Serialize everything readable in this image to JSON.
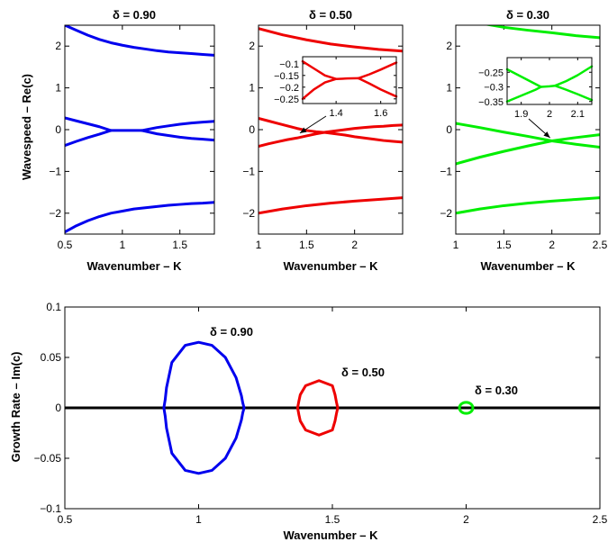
{
  "chart_data": [
    {
      "type": "line",
      "title": "δ = 0.90",
      "xlabel": "Wavenumber – K",
      "ylabel": "Wavespeed – Re(c)",
      "xlim": [
        0.5,
        1.8
      ],
      "ylim": [
        -2.5,
        2.5
      ],
      "xticks": [
        "0.5",
        "1",
        "1.5"
      ],
      "yticks": [
        "−2",
        "−1",
        "0",
        "1",
        "2"
      ],
      "color": "#0000ee",
      "series": [
        {
          "x": [
            0.5,
            0.6,
            0.7,
            0.8,
            0.9,
            1.0,
            1.1,
            1.2,
            1.3,
            1.4,
            1.5,
            1.6,
            1.7,
            1.8
          ],
          "y": [
            2.5,
            2.38,
            2.26,
            2.16,
            2.08,
            2.02,
            1.97,
            1.93,
            1.89,
            1.86,
            1.84,
            1.82,
            1.8,
            1.78
          ]
        },
        {
          "x": [
            0.5,
            0.6,
            0.7,
            0.8,
            0.9
          ],
          "y": [
            0.28,
            0.21,
            0.14,
            0.07,
            -0.02
          ]
        },
        {
          "x": [
            0.5,
            0.6,
            0.7,
            0.8,
            0.9
          ],
          "y": [
            -0.38,
            -0.28,
            -0.19,
            -0.11,
            -0.02
          ]
        },
        {
          "x": [
            0.9,
            1.0,
            1.1,
            1.17
          ],
          "y": [
            -0.02,
            -0.02,
            -0.02,
            -0.02
          ]
        },
        {
          "x": [
            1.17,
            1.3,
            1.4,
            1.5,
            1.6,
            1.7,
            1.8
          ],
          "y": [
            -0.02,
            0.05,
            0.09,
            0.13,
            0.16,
            0.18,
            0.2
          ]
        },
        {
          "x": [
            1.17,
            1.3,
            1.4,
            1.5,
            1.6,
            1.7,
            1.8
          ],
          "y": [
            -0.02,
            -0.1,
            -0.14,
            -0.18,
            -0.21,
            -0.23,
            -0.25
          ]
        },
        {
          "x": [
            0.5,
            0.6,
            0.7,
            0.8,
            0.9,
            1.0,
            1.1,
            1.2,
            1.3,
            1.4,
            1.5,
            1.6,
            1.7,
            1.8
          ],
          "y": [
            -2.45,
            -2.3,
            -2.18,
            -2.08,
            -2.0,
            -1.95,
            -1.9,
            -1.87,
            -1.84,
            -1.81,
            -1.79,
            -1.77,
            -1.76,
            -1.74
          ]
        }
      ]
    },
    {
      "type": "line",
      "title": "δ = 0.50",
      "xlabel": "Wavenumber – K",
      "xlim": [
        1,
        2.5
      ],
      "ylim": [
        -2.5,
        2.5
      ],
      "xticks": [
        "1",
        "1.5",
        "2"
      ],
      "yticks": [
        "−2",
        "−1",
        "0",
        "1",
        "2"
      ],
      "color": "#ee0000",
      "series": [
        {
          "x": [
            1.0,
            1.25,
            1.5,
            1.75,
            2.0,
            2.25,
            2.5
          ],
          "y": [
            2.42,
            2.27,
            2.15,
            2.05,
            1.98,
            1.92,
            1.88
          ]
        },
        {
          "x": [
            1.0,
            1.1,
            1.2,
            1.3,
            1.4,
            1.5,
            1.6,
            1.7,
            1.8,
            1.9,
            2.0,
            2.1,
            2.2,
            2.3,
            2.4,
            2.5
          ],
          "y": [
            0.27,
            0.21,
            0.15,
            0.09,
            0.03,
            -0.02,
            -0.05,
            -0.07,
            -0.1,
            -0.13,
            -0.17,
            -0.2,
            -0.23,
            -0.26,
            -0.28,
            -0.3
          ]
        },
        {
          "x": [
            1.0,
            1.1,
            1.2,
            1.3,
            1.4,
            1.5,
            1.6,
            1.7,
            1.8,
            1.9,
            2.0,
            2.1,
            2.2,
            2.3,
            2.4,
            2.5
          ],
          "y": [
            -0.4,
            -0.34,
            -0.29,
            -0.24,
            -0.2,
            -0.15,
            -0.1,
            -0.06,
            -0.03,
            0.0,
            0.03,
            0.05,
            0.07,
            0.08,
            0.1,
            0.11
          ]
        },
        {
          "x": [
            1.0,
            1.25,
            1.5,
            1.75,
            2.0,
            2.25,
            2.5
          ],
          "y": [
            -2.0,
            -1.9,
            -1.82,
            -1.76,
            -1.71,
            -1.67,
            -1.63
          ]
        }
      ],
      "inset": {
        "xlim": [
          1.25,
          1.67
        ],
        "ylim": [
          -0.27,
          -0.07
        ],
        "xticks": [
          "1.4",
          "1.6"
        ],
        "yticks": [
          "−0.1",
          "−0.15",
          "−0.2",
          "−0.25"
        ],
        "series": [
          {
            "x": [
              1.25,
              1.3,
              1.35,
              1.4
            ],
            "y": [
              -0.09,
              -0.12,
              -0.15,
              -0.165
            ]
          },
          {
            "x": [
              1.25,
              1.3,
              1.35,
              1.4
            ],
            "y": [
              -0.25,
              -0.21,
              -0.18,
              -0.165
            ]
          },
          {
            "x": [
              1.4,
              1.45,
              1.5
            ],
            "y": [
              -0.165,
              -0.163,
              -0.162
            ]
          },
          {
            "x": [
              1.5,
              1.55,
              1.6,
              1.67
            ],
            "y": [
              -0.162,
              -0.145,
              -0.125,
              -0.095
            ]
          },
          {
            "x": [
              1.5,
              1.55,
              1.6,
              1.67
            ],
            "y": [
              -0.162,
              -0.185,
              -0.21,
              -0.24
            ]
          }
        ]
      }
    },
    {
      "type": "line",
      "title": "δ = 0.30",
      "xlabel": "Wavenumber – K",
      "xlim": [
        1,
        2.5
      ],
      "ylim": [
        -2.5,
        2.5
      ],
      "xticks": [
        "1",
        "1.5",
        "2",
        "2.5"
      ],
      "yticks": [
        "−2",
        "−1",
        "0",
        "1",
        "2"
      ],
      "color": "#00ee00",
      "series": [
        {
          "x": [
            1.0,
            1.25,
            1.5,
            1.75,
            2.0,
            2.25,
            2.5
          ],
          "y": [
            2.7,
            2.55,
            2.45,
            2.38,
            2.32,
            2.25,
            2.2
          ]
        },
        {
          "x": [
            1.0,
            1.25,
            1.5,
            1.75,
            2.0,
            2.25,
            2.5
          ],
          "y": [
            0.15,
            0.05,
            -0.06,
            -0.16,
            -0.27,
            -0.35,
            -0.42
          ]
        },
        {
          "x": [
            1.0,
            1.25,
            1.5,
            1.75,
            2.0,
            2.25,
            2.5
          ],
          "y": [
            -0.82,
            -0.66,
            -0.52,
            -0.39,
            -0.27,
            -0.19,
            -0.12
          ]
        },
        {
          "x": [
            1.0,
            1.25,
            1.5,
            1.75,
            2.0,
            2.25,
            2.5
          ],
          "y": [
            -2.0,
            -1.9,
            -1.82,
            -1.76,
            -1.71,
            -1.67,
            -1.63
          ]
        }
      ],
      "inset": {
        "xlim": [
          1.85,
          2.15
        ],
        "ylim": [
          -0.36,
          -0.2
        ],
        "xticks": [
          "1.9",
          "2",
          "2.1"
        ],
        "yticks": [
          "−0.25",
          "−0.3",
          "−0.35"
        ],
        "series": [
          {
            "x": [
              1.85,
              1.9,
              1.95,
              1.97
            ],
            "y": [
              -0.24,
              -0.265,
              -0.29,
              -0.3
            ]
          },
          {
            "x": [
              1.85,
              1.9,
              1.95,
              1.97
            ],
            "y": [
              -0.35,
              -0.33,
              -0.31,
              -0.3
            ]
          },
          {
            "x": [
              1.97,
              2.0,
              2.02
            ],
            "y": [
              -0.3,
              -0.298,
              -0.296
            ]
          },
          {
            "x": [
              2.02,
              2.06,
              2.1,
              2.15
            ],
            "y": [
              -0.296,
              -0.28,
              -0.26,
              -0.23
            ]
          },
          {
            "x": [
              2.02,
              2.06,
              2.1,
              2.15
            ],
            "y": [
              -0.296,
              -0.31,
              -0.325,
              -0.345
            ]
          }
        ]
      }
    },
    {
      "type": "line",
      "xlabel": "Wavenumber – K",
      "ylabel": "Growth Rate – Im(c)",
      "xlim": [
        0.5,
        2.5
      ],
      "ylim": [
        -0.1,
        0.1
      ],
      "xticks": [
        "0.5",
        "1",
        "1.5",
        "2",
        "2.5"
      ],
      "yticks": [
        "0.1",
        "0.05",
        "0",
        "−0.05",
        "−0.1"
      ],
      "series": [
        {
          "name": "δ = 0.90",
          "color": "#0000ee",
          "x": [
            0.87,
            0.875,
            0.88,
            0.9,
            0.95,
            1.0,
            1.05,
            1.1,
            1.14,
            1.16,
            1.165,
            1.17
          ],
          "y": [
            0.0,
            0.008,
            0.02,
            0.045,
            0.062,
            0.065,
            0.062,
            0.05,
            0.03,
            0.012,
            0.005,
            0.0
          ]
        },
        {
          "name": "δ = 0.50",
          "color": "#ee0000",
          "x": [
            1.37,
            1.375,
            1.38,
            1.4,
            1.45,
            1.5,
            1.51,
            1.515,
            1.52
          ],
          "y": [
            0.0,
            0.007,
            0.013,
            0.022,
            0.027,
            0.022,
            0.013,
            0.006,
            0.0
          ]
        },
        {
          "name": "δ = 0.30",
          "color": "#00ee00",
          "circle": {
            "cx": 2.0,
            "cy": 0.0,
            "rx": 0.025,
            "ry": 0.0055
          }
        }
      ],
      "baseline": 0
    }
  ]
}
